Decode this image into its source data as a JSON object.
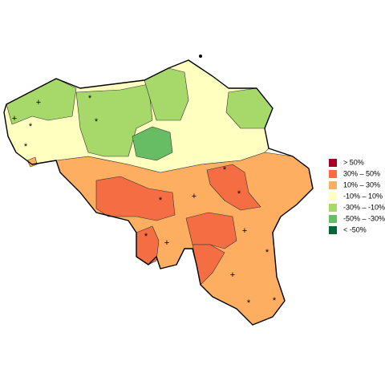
{
  "legend": [
    {
      "label": "> 50%",
      "color": "#a50026"
    },
    {
      "label": "30%  –  50%",
      "color": "#f46d43"
    },
    {
      "label": "10%  –  30%",
      "color": "#fdae61"
    },
    {
      "label": "-10%  –  10%",
      "color": "#ffffc0"
    },
    {
      "label": "-30%  –  -10%",
      "color": "#a6d96a"
    },
    {
      "label": "-50%  –  -30%",
      "color": "#66bd63"
    },
    {
      "label": "< -50%",
      "color": "#006837"
    }
  ],
  "markers": [
    "+",
    "+",
    "*",
    "*",
    "*",
    "*",
    "*",
    "*",
    "*",
    "+",
    "*",
    "+",
    "+",
    "*",
    "+",
    "*",
    "*"
  ]
}
